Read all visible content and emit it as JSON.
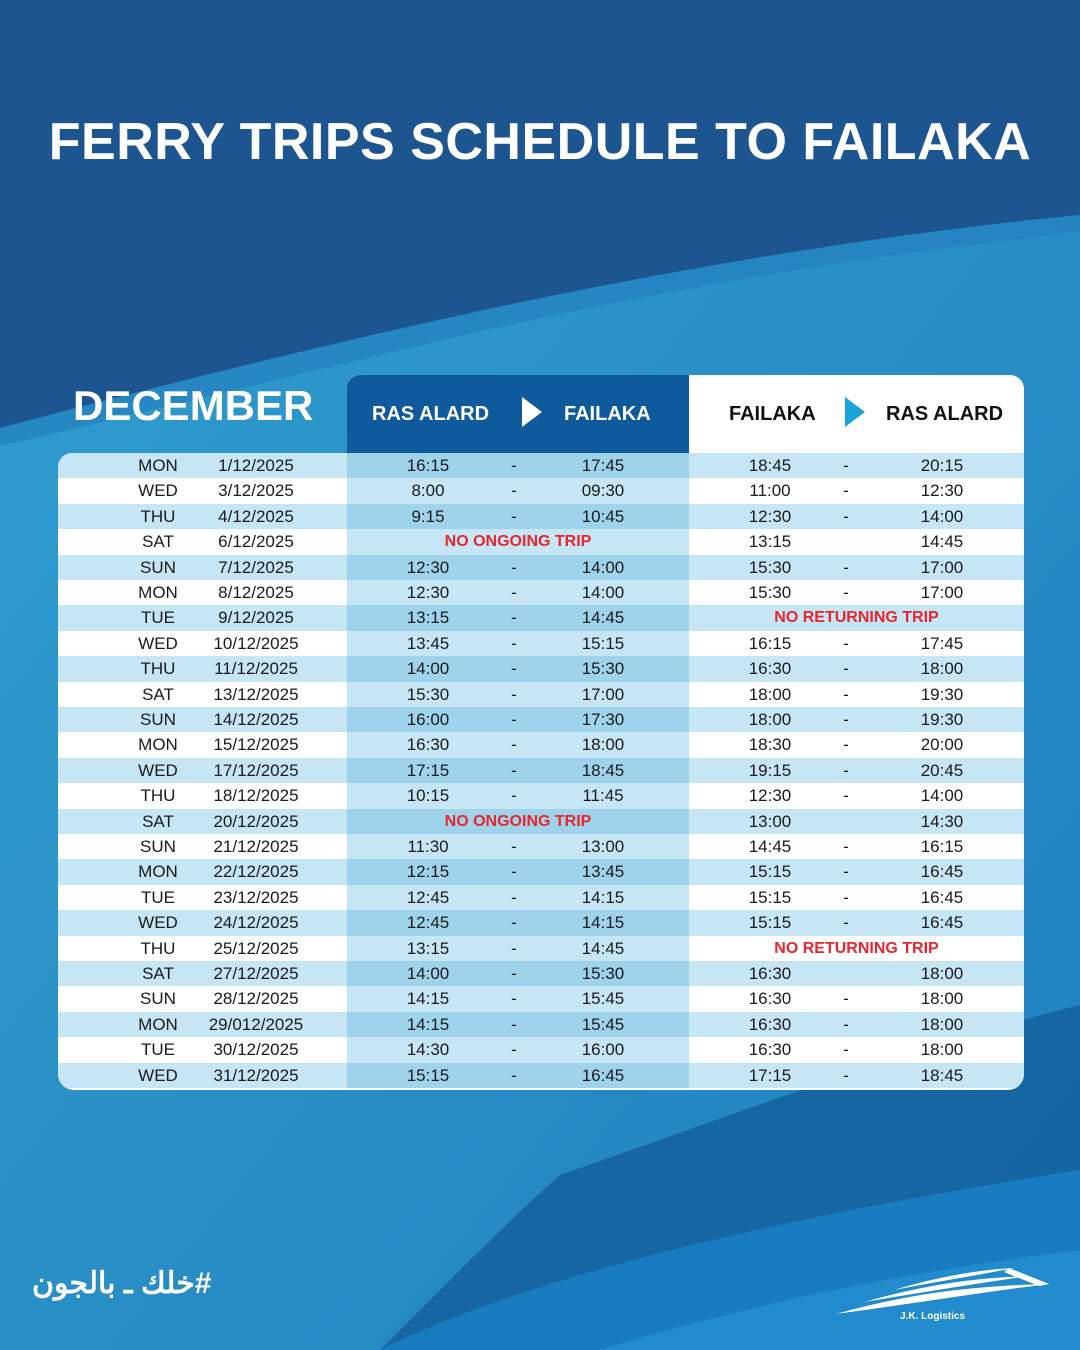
{
  "title": "FERRY TRIPS SCHEDULE TO FAILAKA",
  "month": "DECEMBER",
  "header": {
    "outbound_from": "RAS ALARD",
    "outbound_to": "FAILAKA",
    "return_from": "FAILAKA",
    "return_to": "RAS ALARD"
  },
  "colors": {
    "dark_blue": "#1e5a94",
    "header_blue": "#0f5a9c",
    "light_row": "#c6e6f5",
    "mid_row": "#9fd3ec",
    "alert_red": "#e8262d",
    "arrow_cyan": "#19a4d8"
  },
  "rows": [
    {
      "day": "MON",
      "date": "1/12/2025",
      "out_dep": "16:15",
      "out_sep": "-",
      "out_arr": "17:45",
      "ret_dep": "18:45",
      "ret_sep": "-",
      "ret_arr": "20:15"
    },
    {
      "day": "WED",
      "date": "3/12/2025",
      "out_dep": "8:00",
      "out_sep": "-",
      "out_arr": "09:30",
      "ret_dep": "11:00",
      "ret_sep": "-",
      "ret_arr": "12:30"
    },
    {
      "day": "THU",
      "date": "4/12/2025",
      "out_dep": "9:15",
      "out_sep": "-",
      "out_arr": "10:45",
      "ret_dep": "12:30",
      "ret_sep": "-",
      "ret_arr": "14:00"
    },
    {
      "day": "SAT",
      "date": "6/12/2025",
      "out_note": "NO ONGOING TRIP",
      "ret_dep": "13:15",
      "ret_sep": "",
      "ret_arr": "14:45"
    },
    {
      "day": "SUN",
      "date": "7/12/2025",
      "out_dep": "12:30",
      "out_sep": "-",
      "out_arr": "14:00",
      "ret_dep": "15:30",
      "ret_sep": "-",
      "ret_arr": "17:00"
    },
    {
      "day": "MON",
      "date": "8/12/2025",
      "out_dep": "12:30",
      "out_sep": "-",
      "out_arr": "14:00",
      "ret_dep": "15:30",
      "ret_sep": "-",
      "ret_arr": "17:00"
    },
    {
      "day": "TUE",
      "date": "9/12/2025",
      "out_dep": "13:15",
      "out_sep": "-",
      "out_arr": "14:45",
      "ret_note": "NO RETURNING TRIP"
    },
    {
      "day": "WED",
      "date": "10/12/2025",
      "out_dep": "13:45",
      "out_sep": "-",
      "out_arr": "15:15",
      "ret_dep": "16:15",
      "ret_sep": "-",
      "ret_arr": "17:45"
    },
    {
      "day": "THU",
      "date": "11/12/2025",
      "out_dep": "14:00",
      "out_sep": "-",
      "out_arr": "15:30",
      "ret_dep": "16:30",
      "ret_sep": "-",
      "ret_arr": "18:00"
    },
    {
      "day": "SAT",
      "date": "13/12/2025",
      "out_dep": "15:30",
      "out_sep": "-",
      "out_arr": "17:00",
      "ret_dep": "18:00",
      "ret_sep": "-",
      "ret_arr": "19:30"
    },
    {
      "day": "SUN",
      "date": "14/12/2025",
      "out_dep": "16:00",
      "out_sep": "-",
      "out_arr": "17:30",
      "ret_dep": "18:00",
      "ret_sep": "-",
      "ret_arr": "19:30"
    },
    {
      "day": "MON",
      "date": "15/12/2025",
      "out_dep": "16:30",
      "out_sep": "-",
      "out_arr": "18:00",
      "ret_dep": "18:30",
      "ret_sep": "-",
      "ret_arr": "20:00"
    },
    {
      "day": "WED",
      "date": "17/12/2025",
      "out_dep": "17:15",
      "out_sep": "-",
      "out_arr": "18:45",
      "ret_dep": "19:15",
      "ret_sep": "-",
      "ret_arr": "20:45"
    },
    {
      "day": "THU",
      "date": "18/12/2025",
      "out_dep": "10:15",
      "out_sep": "-",
      "out_arr": "11:45",
      "ret_dep": "12:30",
      "ret_sep": "-",
      "ret_arr": "14:00"
    },
    {
      "day": "SAT",
      "date": "20/12/2025",
      "out_note": "NO ONGOING TRIP",
      "ret_dep": "13:00",
      "ret_sep": "",
      "ret_arr": "14:30"
    },
    {
      "day": "SUN",
      "date": "21/12/2025",
      "out_dep": "11:30",
      "out_sep": "-",
      "out_arr": "13:00",
      "ret_dep": "14:45",
      "ret_sep": "-",
      "ret_arr": "16:15"
    },
    {
      "day": "MON",
      "date": "22/12/2025",
      "out_dep": "12:15",
      "out_sep": "-",
      "out_arr": "13:45",
      "ret_dep": "15:15",
      "ret_sep": "-",
      "ret_arr": "16:45"
    },
    {
      "day": "TUE",
      "date": "23/12/2025",
      "out_dep": "12:45",
      "out_sep": "-",
      "out_arr": "14:15",
      "ret_dep": "15:15",
      "ret_sep": "-",
      "ret_arr": "16:45"
    },
    {
      "day": "WED",
      "date": "24/12/2025",
      "out_dep": "12:45",
      "out_sep": "-",
      "out_arr": "14:15",
      "ret_dep": "15:15",
      "ret_sep": "-",
      "ret_arr": "16:45"
    },
    {
      "day": "THU",
      "date": "25/12/2025",
      "out_dep": "13:15",
      "out_sep": "-",
      "out_arr": "14:45",
      "ret_note": "NO RETURNING TRIP"
    },
    {
      "day": "SAT",
      "date": "27/12/2025",
      "out_dep": "14:00",
      "out_sep": "-",
      "out_arr": "15:30",
      "ret_dep": "16:30",
      "ret_sep": "",
      "ret_arr": "18:00"
    },
    {
      "day": "SUN",
      "date": "28/12/2025",
      "out_dep": "14:15",
      "out_sep": "-",
      "out_arr": "15:45",
      "ret_dep": "16:30",
      "ret_sep": "-",
      "ret_arr": "18:00"
    },
    {
      "day": "MON",
      "date": "29/012/2025",
      "out_dep": "14:15",
      "out_sep": "-",
      "out_arr": "15:45",
      "ret_dep": "16:30",
      "ret_sep": "-",
      "ret_arr": "18:00"
    },
    {
      "day": "TUE",
      "date": "30/12/2025",
      "out_dep": "14:30",
      "out_sep": "-",
      "out_arr": "16:00",
      "ret_dep": "16:30",
      "ret_sep": "-",
      "ret_arr": "18:00"
    },
    {
      "day": "WED",
      "date": "31/12/2025",
      "out_dep": "15:15",
      "out_sep": "-",
      "out_arr": "16:45",
      "ret_dep": "17:15",
      "ret_sep": "-",
      "ret_arr": "18:45"
    }
  ],
  "tagline": "#خلك ـ بالجون",
  "logo_text": "J.K. Logistics"
}
